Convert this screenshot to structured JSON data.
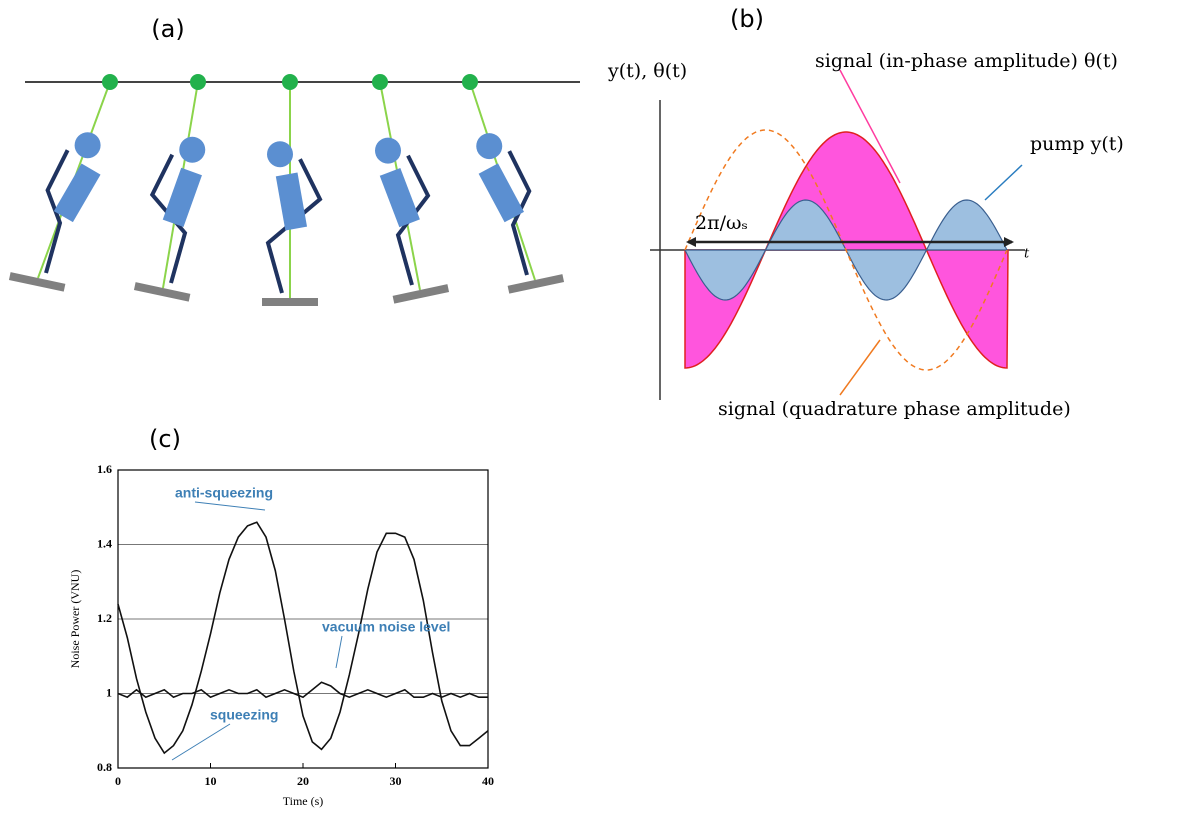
{
  "panel_labels": [
    "(a)",
    "(b)",
    "(c)"
  ],
  "diagram_b": {
    "axis_label": "y(t), θ(t)",
    "signal_label": "signal (in-phase amplitude) θ(t)",
    "pump_label": "pump y(t)",
    "period_label": "2π/ωₛ",
    "t_label": "t",
    "quadrature_label": "signal (quadrature phase amplitude)"
  },
  "chart_data": {
    "type": "line",
    "x": [
      0,
      1,
      2,
      3,
      4,
      5,
      6,
      7,
      8,
      9,
      10,
      11,
      12,
      13,
      14,
      15,
      16,
      17,
      18,
      19,
      20,
      21,
      22,
      23,
      24,
      25,
      26,
      27,
      28,
      29,
      30,
      31,
      32,
      33,
      34,
      35,
      36,
      37,
      38,
      39,
      40
    ],
    "series": [
      {
        "color": "#111111",
        "values": [
          1.24,
          1.15,
          1.04,
          0.95,
          0.88,
          0.84,
          0.86,
          0.9,
          0.97,
          1.06,
          1.16,
          1.27,
          1.36,
          1.42,
          1.45,
          1.46,
          1.42,
          1.33,
          1.2,
          1.06,
          0.94,
          0.87,
          0.85,
          0.88,
          0.95,
          1.05,
          1.16,
          1.28,
          1.38,
          1.43,
          1.43,
          1.42,
          1.36,
          1.25,
          1.11,
          0.98,
          0.9,
          0.86,
          0.86,
          0.88,
          0.9
        ]
      },
      {
        "color": "#111111",
        "values": [
          1.0,
          0.99,
          1.01,
          0.99,
          1.0,
          1.01,
          0.99,
          1.0,
          1.0,
          1.01,
          0.99,
          1.0,
          1.01,
          1.0,
          1.0,
          1.01,
          0.99,
          1.0,
          1.01,
          1.0,
          0.99,
          1.01,
          1.03,
          1.02,
          1.0,
          0.99,
          1.0,
          1.01,
          1.0,
          0.99,
          1.0,
          1.01,
          0.99,
          0.99,
          1.0,
          0.99,
          1.0,
          0.99,
          1.0,
          0.99,
          0.99
        ]
      }
    ],
    "annotations": [
      "anti-squeezing",
      "vacuum noise level",
      "squeezing"
    ],
    "xlabel": "Time (s)",
    "ylabel": "Noise Power (VNU)",
    "xlim": [
      0,
      40
    ],
    "xticks": [
      0,
      10,
      20,
      30,
      40
    ],
    "ylim": [
      0.8,
      1.6
    ],
    "yticks": [
      0.8,
      1,
      1.2,
      1.4,
      1.6
    ],
    "grid": true
  }
}
